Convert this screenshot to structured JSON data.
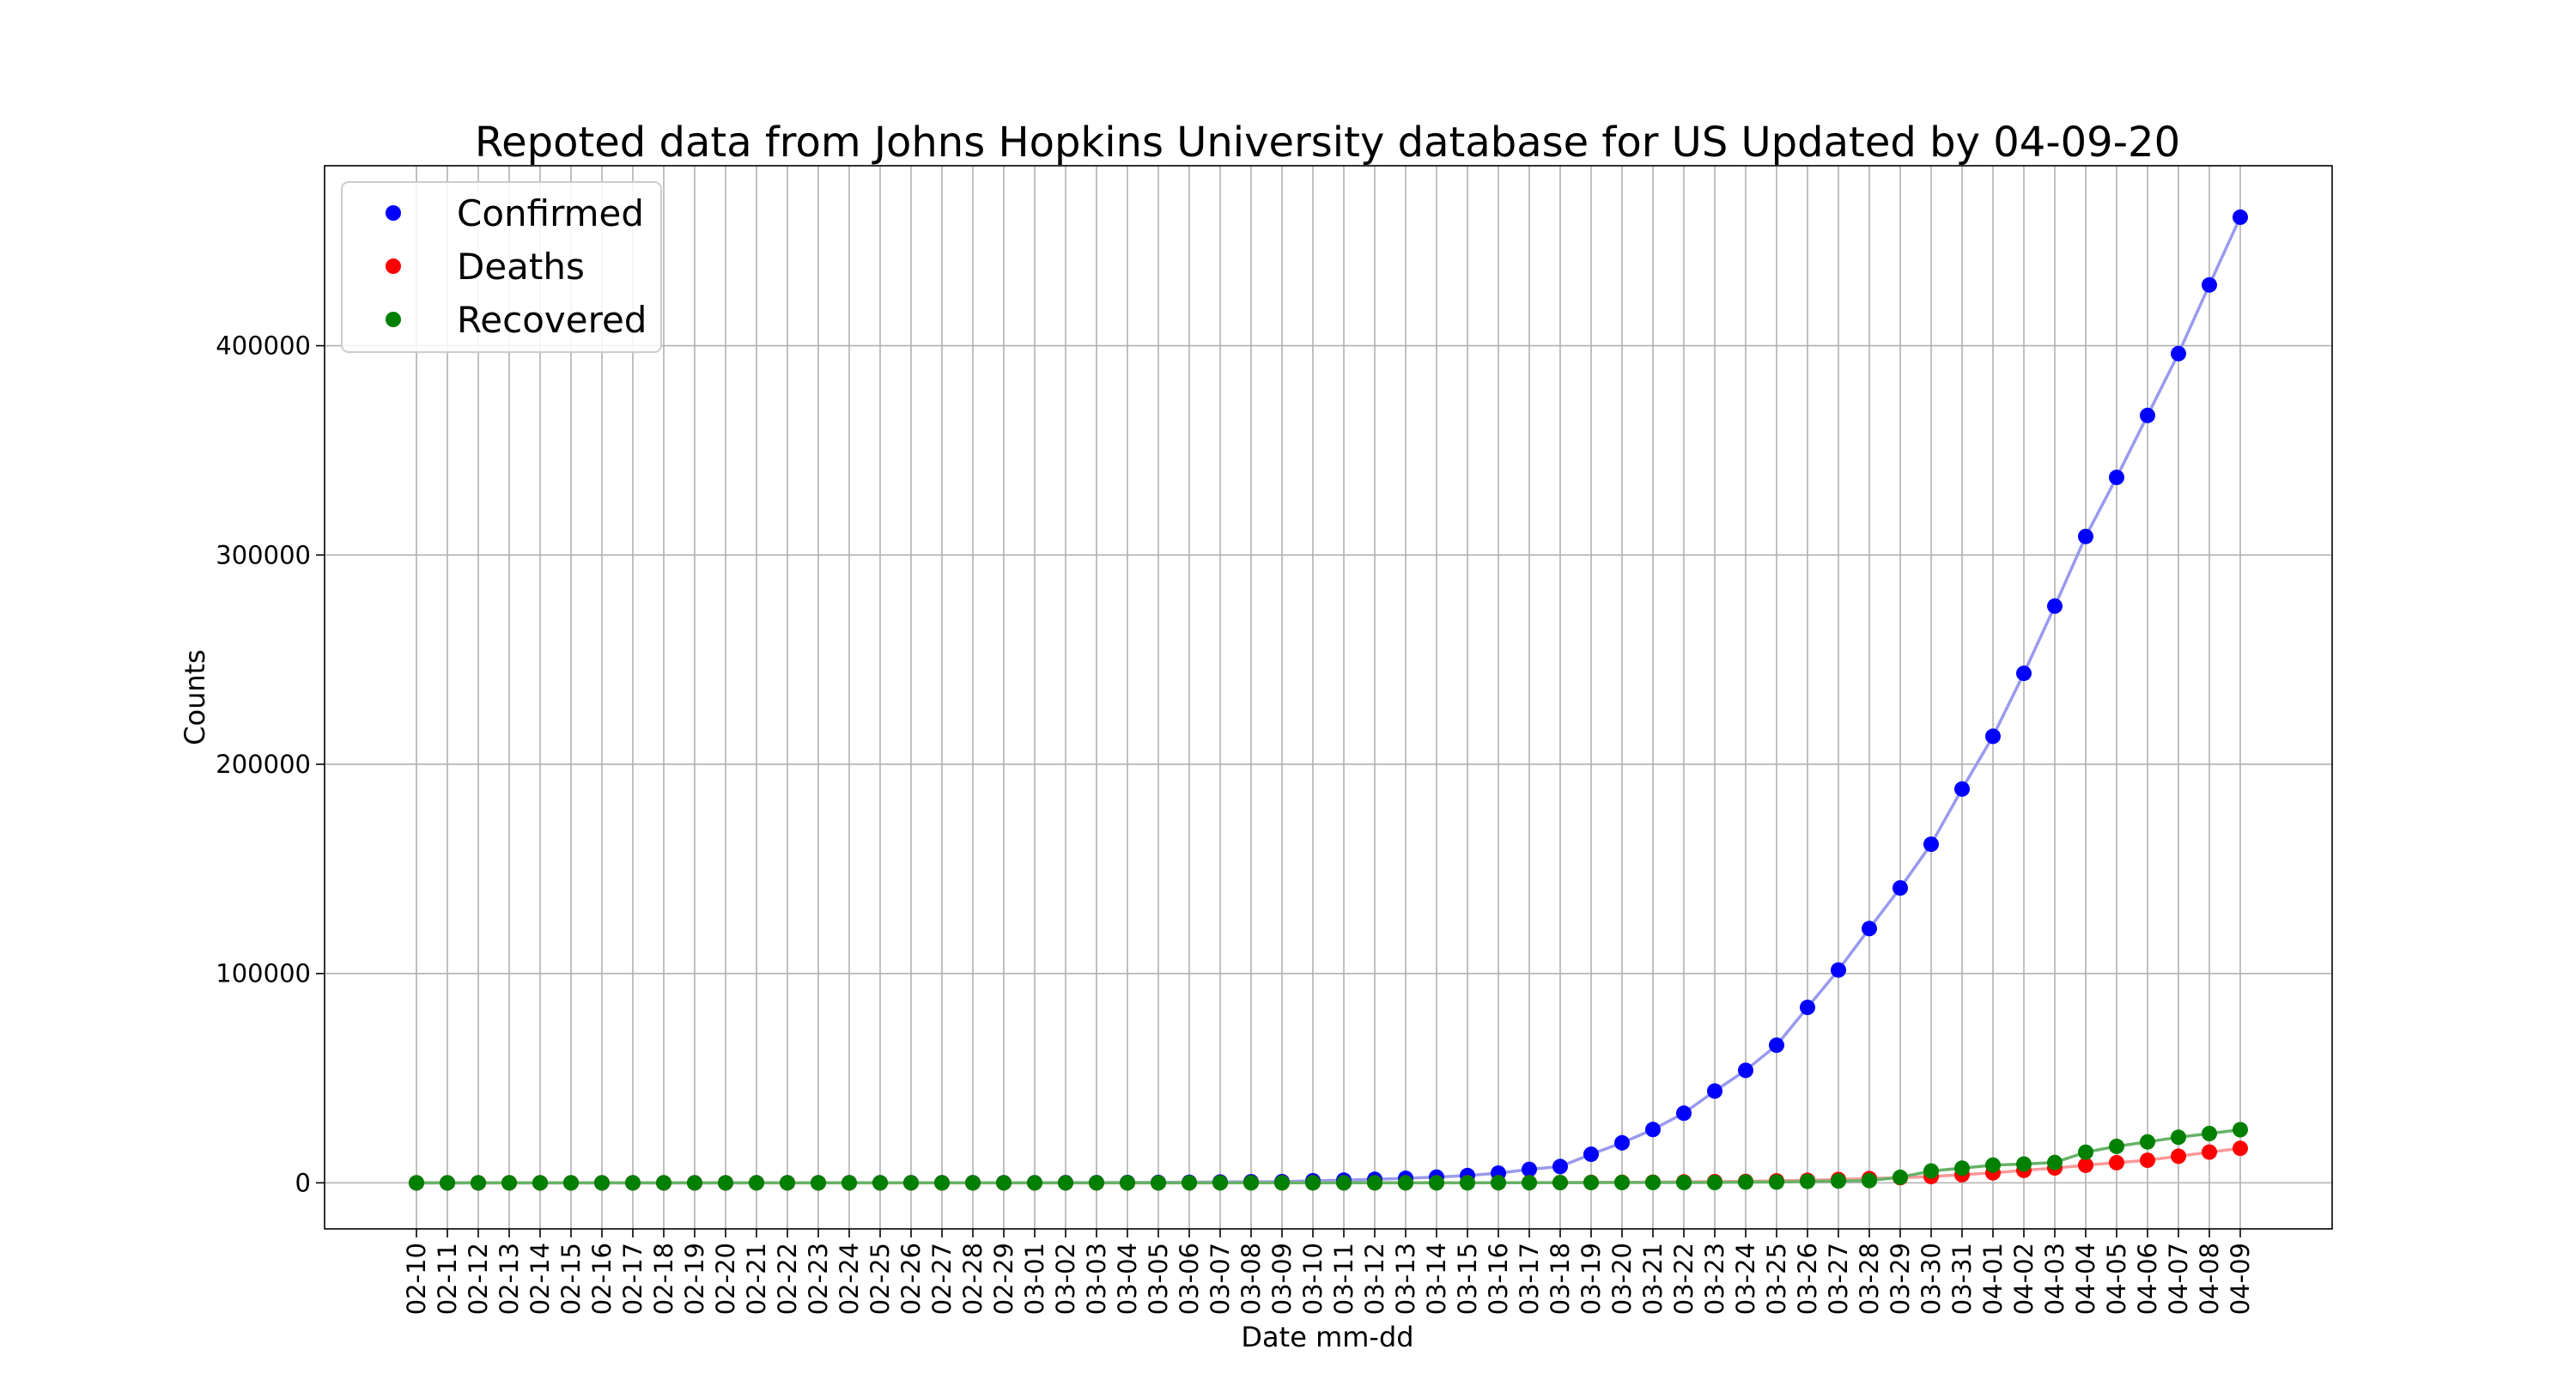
{
  "chart_data": {
    "type": "line",
    "title": "Repoted data from Johns Hopkins University database for US Updated by 04-09-20",
    "xlabel": "Date mm-dd",
    "ylabel": "Counts",
    "categories": [
      "02-10",
      "02-11",
      "02-12",
      "02-13",
      "02-14",
      "02-15",
      "02-16",
      "02-17",
      "02-18",
      "02-19",
      "02-20",
      "02-21",
      "02-22",
      "02-23",
      "02-24",
      "02-25",
      "02-26",
      "02-27",
      "02-28",
      "02-29",
      "03-01",
      "03-02",
      "03-03",
      "03-04",
      "03-05",
      "03-06",
      "03-07",
      "03-08",
      "03-09",
      "03-10",
      "03-11",
      "03-12",
      "03-13",
      "03-14",
      "03-15",
      "03-16",
      "03-17",
      "03-18",
      "03-19",
      "03-20",
      "03-21",
      "03-22",
      "03-23",
      "03-24",
      "03-25",
      "03-26",
      "03-27",
      "03-28",
      "03-29",
      "03-30",
      "03-31",
      "04-01",
      "04-02",
      "04-03",
      "04-04",
      "04-05",
      "04-06",
      "04-07",
      "04-08",
      "04-09"
    ],
    "ylim": [
      -22000,
      486000
    ],
    "yticks": [
      0,
      100000,
      200000,
      300000,
      400000
    ],
    "ytick_labels": [
      "0",
      "100000",
      "200000",
      "300000",
      "400000"
    ],
    "grid": true,
    "legend_position": "top-left",
    "series": [
      {
        "name": "Confirmed",
        "color": "#0000ff",
        "line_color": "#9999ee",
        "values": [
          11,
          12,
          12,
          13,
          13,
          13,
          13,
          13,
          13,
          13,
          13,
          15,
          15,
          15,
          51,
          51,
          57,
          58,
          60,
          68,
          74,
          98,
          118,
          149,
          217,
          262,
          402,
          518,
          583,
          959,
          1281,
          1663,
          2179,
          2727,
          3499,
          4632,
          6421,
          7783,
          13677,
          19100,
          25489,
          33276,
          43847,
          53740,
          65778,
          83836,
          101657,
          121478,
          140886,
          161807,
          188172,
          213372,
          243453,
          275586,
          308850,
          337072,
          366667,
          396223,
          429052,
          461437
        ]
      },
      {
        "name": "Deaths",
        "color": "#ff0000",
        "line_color": "#ff9999",
        "values": [
          0,
          0,
          0,
          0,
          0,
          0,
          0,
          0,
          0,
          0,
          0,
          0,
          0,
          0,
          0,
          0,
          0,
          0,
          0,
          1,
          1,
          6,
          7,
          11,
          12,
          14,
          17,
          21,
          22,
          28,
          36,
          40,
          47,
          54,
          63,
          85,
          108,
          118,
          200,
          244,
          307,
          427,
          552,
          706,
          942,
          1209,
          1581,
          2026,
          2467,
          2978,
          3873,
          4757,
          5926,
          7087,
          8407,
          9619,
          10783,
          12722,
          14695,
          16478
        ]
      },
      {
        "name": "Recovered",
        "color": "#008000",
        "line_color": "#66b266",
        "values": [
          3,
          3,
          3,
          3,
          3,
          3,
          3,
          3,
          3,
          3,
          3,
          5,
          5,
          5,
          5,
          6,
          6,
          6,
          7,
          7,
          7,
          7,
          7,
          7,
          7,
          7,
          7,
          7,
          7,
          8,
          8,
          12,
          12,
          12,
          12,
          17,
          17,
          106,
          108,
          147,
          176,
          178,
          178,
          348,
          361,
          681,
          869,
          1072,
          2665,
          5644,
          7024,
          8474,
          9001,
          9707,
          14652,
          17448,
          19581,
          21763,
          23559,
          25410
        ]
      }
    ]
  }
}
